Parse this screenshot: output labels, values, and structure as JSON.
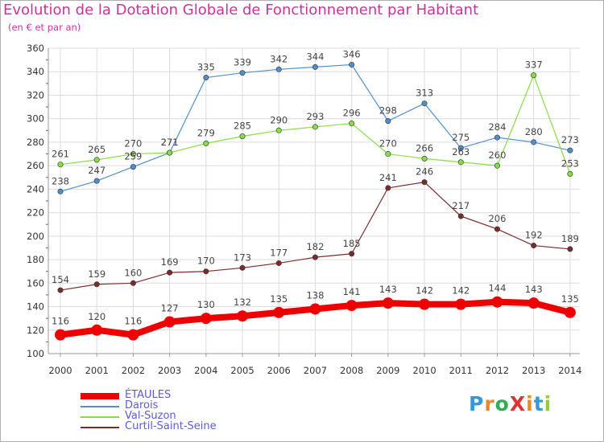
{
  "title": "Evolution de la Dotation Globale de Fonctionnement par Habitant",
  "subtitle": "(en € et par an)",
  "logo": "ProXiti",
  "colors": {
    "title": "#cc3399",
    "grid": "#dcdcdc",
    "axis": "#999999",
    "legend_text": "#5b5bd6"
  },
  "chart_data": {
    "type": "line",
    "title": "Evolution de la Dotation Globale de Fonctionnement par Habitant",
    "subtitle": "(en € et par an)",
    "x": [
      "2000",
      "2001",
      "2002",
      "2003",
      "2004",
      "2005",
      "2006",
      "2007",
      "2008",
      "2009",
      "2010",
      "2011",
      "2012",
      "2013",
      "2014"
    ],
    "ylim": [
      100,
      360
    ],
    "yticks": [
      100,
      120,
      140,
      160,
      180,
      200,
      220,
      240,
      260,
      280,
      300,
      320,
      340,
      360
    ],
    "grid": true,
    "legend_position": "bottom-left",
    "series": [
      {
        "name": "Darois",
        "color": "#4f8fcc",
        "emphasis": false,
        "values": [
          238,
          247,
          259,
          271,
          335,
          339,
          342,
          344,
          346,
          298,
          313,
          275,
          284,
          280,
          273
        ]
      },
      {
        "name": "Val-Suzon",
        "color": "#88dd44",
        "emphasis": false,
        "values": [
          261,
          265,
          270,
          271,
          279,
          285,
          290,
          293,
          296,
          270,
          266,
          263,
          260,
          337,
          253
        ]
      },
      {
        "name": "Curtil-Saint-Seine",
        "color": "#7a2c2c",
        "emphasis": false,
        "values": [
          154,
          159,
          160,
          169,
          170,
          173,
          177,
          182,
          185,
          241,
          246,
          217,
          206,
          192,
          189
        ]
      },
      {
        "name": "ÉTAULES",
        "color": "#ee0000",
        "emphasis": true,
        "values": [
          116,
          120,
          116,
          127,
          130,
          132,
          135,
          138,
          141,
          143,
          142,
          142,
          144,
          143,
          135
        ]
      }
    ]
  },
  "legend_order": [
    3,
    0,
    1,
    2
  ]
}
